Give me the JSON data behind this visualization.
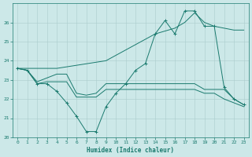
{
  "xlabel": "Humidex (Indice chaleur)",
  "xlim": [
    -0.5,
    23.5
  ],
  "ylim": [
    20,
    27
  ],
  "yticks": [
    20,
    21,
    22,
    23,
    24,
    25,
    26
  ],
  "xticks": [
    0,
    1,
    2,
    3,
    4,
    5,
    6,
    7,
    8,
    9,
    10,
    11,
    12,
    13,
    14,
    15,
    16,
    17,
    18,
    19,
    20,
    21,
    22,
    23
  ],
  "background_color": "#cce8e8",
  "grid_color": "#aacccc",
  "line_color": "#1a7a6e",
  "line1_x": [
    0,
    1,
    2,
    3,
    4,
    5,
    6,
    7,
    8,
    9,
    10,
    11,
    12,
    13,
    14,
    15,
    16,
    17,
    18,
    19,
    20,
    21,
    22,
    23
  ],
  "line1_y": [
    23.6,
    23.5,
    22.8,
    22.8,
    22.4,
    21.8,
    21.1,
    20.3,
    20.3,
    21.6,
    22.3,
    22.8,
    23.5,
    23.85,
    25.4,
    26.1,
    25.4,
    26.6,
    26.6,
    25.8,
    25.8,
    22.6,
    22.0,
    21.7
  ],
  "line2_x": [
    0,
    1,
    2,
    3,
    4,
    5,
    6,
    7,
    8,
    9,
    10,
    11,
    12,
    13,
    14,
    15,
    16,
    17,
    18,
    19,
    20,
    21,
    22,
    23
  ],
  "line2_y": [
    23.6,
    23.5,
    22.9,
    23.1,
    23.3,
    23.3,
    22.3,
    22.2,
    22.3,
    22.8,
    22.8,
    22.8,
    22.8,
    22.8,
    22.8,
    22.8,
    22.8,
    22.8,
    22.8,
    22.5,
    22.5,
    22.5,
    22.0,
    21.7
  ],
  "line3_x": [
    0,
    1,
    2,
    3,
    4,
    5,
    6,
    7,
    8,
    9,
    10,
    11,
    12,
    13,
    14,
    15,
    16,
    17,
    18,
    19,
    20,
    21,
    22,
    23
  ],
  "line3_y": [
    23.6,
    23.5,
    22.8,
    22.9,
    22.9,
    22.9,
    22.1,
    22.1,
    22.1,
    22.5,
    22.5,
    22.5,
    22.5,
    22.5,
    22.5,
    22.5,
    22.5,
    22.5,
    22.5,
    22.3,
    22.3,
    22.0,
    21.8,
    21.6
  ],
  "line4_x": [
    0,
    4,
    9,
    14,
    16,
    17,
    18,
    19,
    20,
    21,
    22,
    23
  ],
  "line4_y": [
    23.6,
    23.6,
    24.0,
    25.4,
    25.7,
    26.0,
    26.5,
    26.0,
    25.8,
    25.7,
    25.6,
    25.6
  ]
}
